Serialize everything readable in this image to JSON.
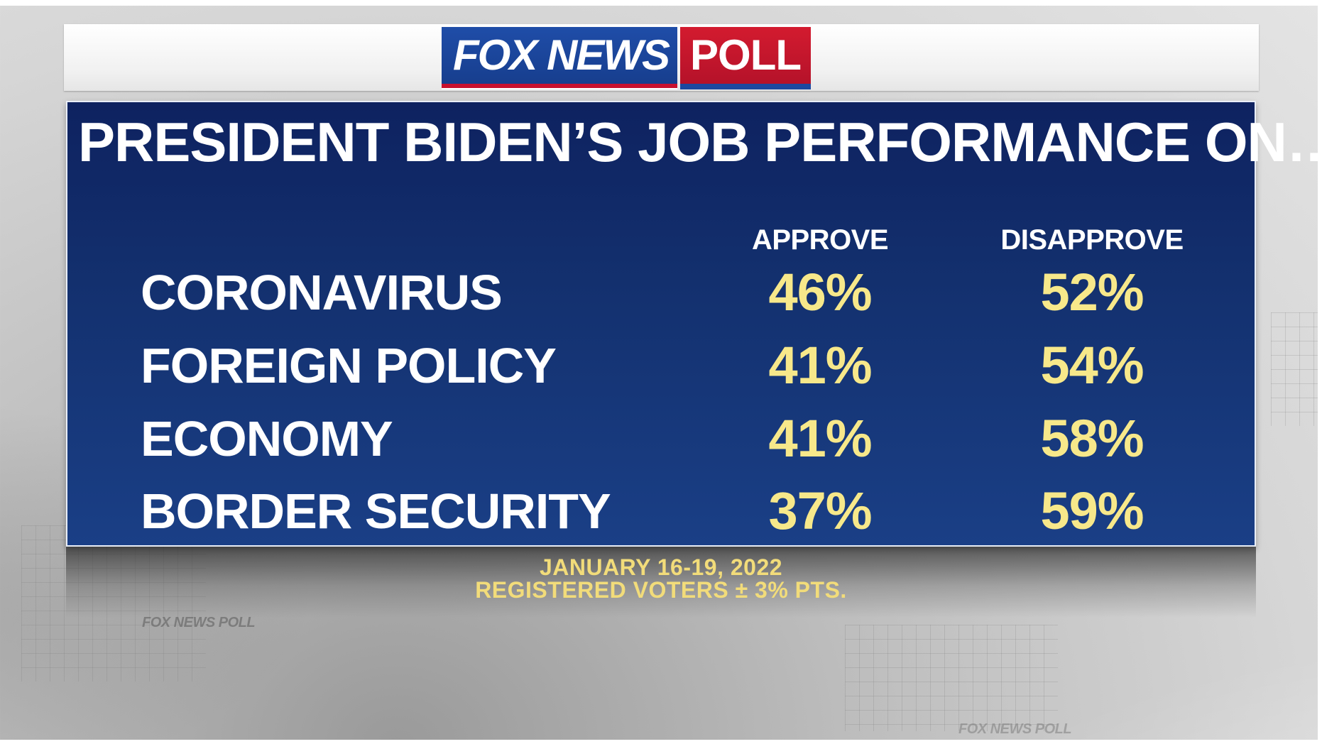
{
  "logo": {
    "fox_news": "FOX NEWS",
    "poll": "POLL"
  },
  "background": {
    "wordmark": "FOX NEWS POLL"
  },
  "chart_data": {
    "type": "table",
    "title": "PRESIDENT BIDEN’S JOB PERFORMANCE ON…",
    "columns": [
      "APPROVE",
      "DISAPPROVE"
    ],
    "categories": [
      "CORONAVIRUS",
      "FOREIGN POLICY",
      "ECONOMY",
      "BORDER SECURITY"
    ],
    "series": [
      {
        "name": "APPROVE",
        "values": [
          46,
          41,
          41,
          37
        ],
        "labels": [
          "46%",
          "41%",
          "41%",
          "37%"
        ]
      },
      {
        "name": "DISAPPROVE",
        "values": [
          52,
          54,
          58,
          59
        ],
        "labels": [
          "52%",
          "54%",
          "58%",
          "59%"
        ]
      }
    ],
    "footnote_date": "JANUARY 16-19, 2022",
    "footnote_sample": "REGISTERED VOTERS ± 3% PTS."
  },
  "colors": {
    "panel": "#13306e",
    "value_text": "#f7e88a",
    "footnote_text": "#f2dc7a",
    "fox_blue": "#1f4da8",
    "poll_red": "#d31b2f"
  }
}
